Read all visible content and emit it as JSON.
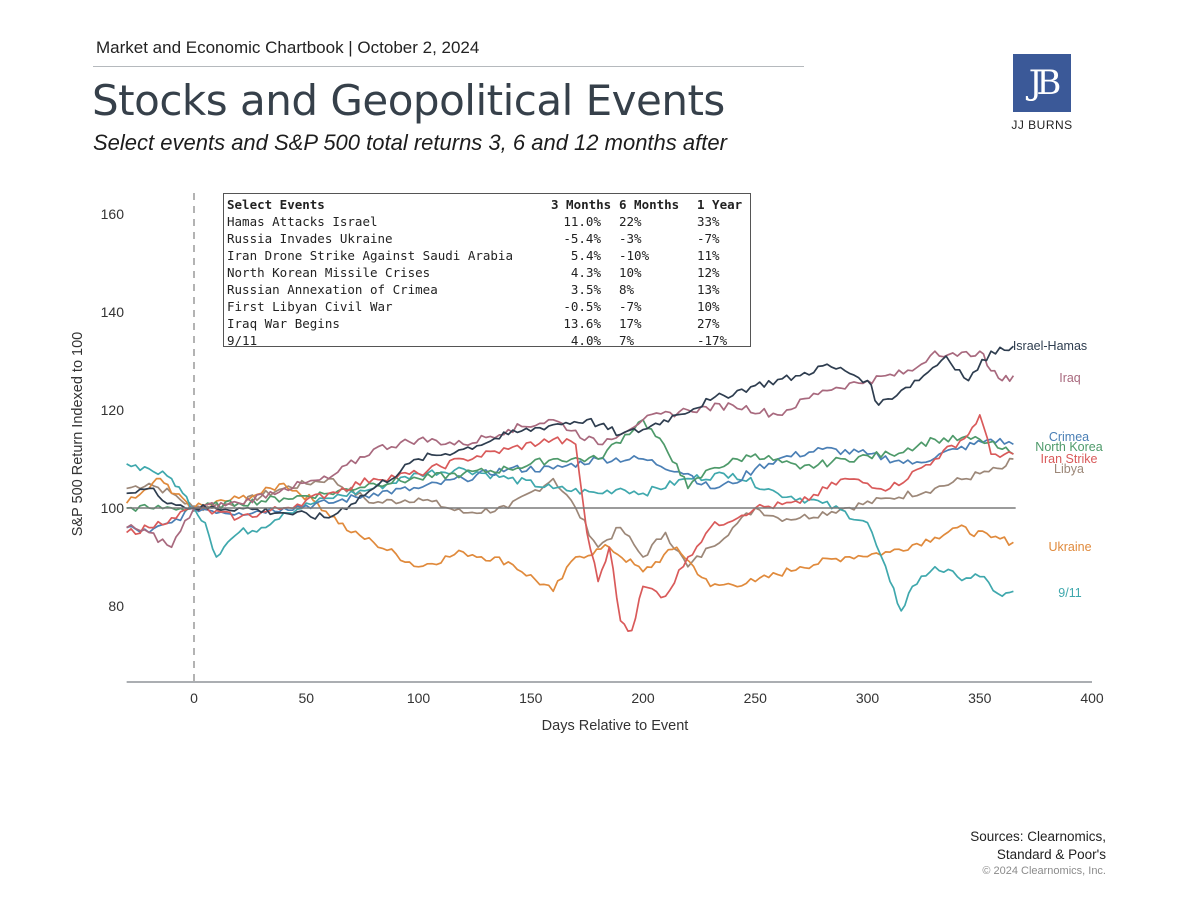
{
  "header": {
    "top_line": "Market and Economic Chartbook | October 2, 2024",
    "title": "Stocks and Geopolitical Events",
    "subtitle": "Select events and S&P 500 total returns 3, 6 and 12 months after"
  },
  "logo": {
    "mark": "JB",
    "name": "JJ BURNS",
    "color": "#3b5998"
  },
  "table": {
    "headers": [
      "Select Events",
      "3 Months",
      "6 Months",
      "1 Year"
    ],
    "rows": [
      [
        "Hamas Attacks Israel",
        "11.0%",
        "22%",
        "33%"
      ],
      [
        "Russia Invades Ukraine",
        "-5.4%",
        "-3%",
        "-7%"
      ],
      [
        "Iran Drone Strike Against Saudi Arabia",
        "5.4%",
        "-10%",
        "11%"
      ],
      [
        "North Korean Missile Crises",
        "4.3%",
        "10%",
        "12%"
      ],
      [
        "Russian Annexation of Crimea",
        "3.5%",
        "8%",
        "13%"
      ],
      [
        "First Libyan Civil War",
        "-0.5%",
        "-7%",
        "10%"
      ],
      [
        "Iraq War Begins",
        "13.6%",
        "17%",
        "27%"
      ],
      [
        "9/11",
        "4.0%",
        "7%",
        "-17%"
      ]
    ]
  },
  "footer": {
    "sources_line1": "Sources: Clearnomics,",
    "sources_line2": "Standard & Poor's",
    "copyright": "© 2024 Clearnomics, Inc."
  },
  "chart_data": {
    "type": "line",
    "title": "Stocks and Geopolitical Events",
    "xlabel": "Days Relative to Event",
    "ylabel": "S&P 500 Return Indexed to 100",
    "xlim": [
      -30,
      400
    ],
    "ylim": [
      64.5,
      166
    ],
    "xticks": [
      0,
      50,
      100,
      150,
      200,
      250,
      300,
      350,
      400
    ],
    "yticks": [
      80,
      100,
      120,
      140,
      160
    ],
    "reference_lines": {
      "horizontal": 100,
      "vertical_dashed": 0
    },
    "grid": false,
    "legend": "direct labels at right end of lines",
    "series": [
      {
        "name": "Israel-Hamas",
        "color": "#2e3d4f",
        "x": [
          -30,
          -20,
          -10,
          0,
          20,
          40,
          60,
          80,
          100,
          120,
          140,
          160,
          175,
          190,
          200,
          215,
          230,
          250,
          270,
          280,
          290,
          300,
          305,
          315,
          325,
          335,
          345,
          355,
          365
        ],
        "y": [
          103,
          104,
          101,
          100,
          100,
          99,
          98,
          104,
          110,
          112,
          115,
          117,
          118,
          115,
          116,
          119,
          122,
          125,
          127,
          129,
          128,
          126,
          121,
          124,
          127,
          131,
          126,
          132,
          133
        ]
      },
      {
        "name": "Iraq",
        "color": "#a8697e",
        "x": [
          -30,
          -20,
          -10,
          0,
          20,
          40,
          60,
          80,
          100,
          120,
          140,
          160,
          180,
          200,
          220,
          240,
          260,
          280,
          300,
          320,
          330,
          340,
          350,
          355,
          360,
          365
        ],
        "y": [
          96,
          95,
          92,
          100,
          101,
          104,
          106,
          112,
          114,
          113,
          116,
          118,
          113,
          118,
          120,
          121,
          119,
          124,
          126,
          128,
          132,
          131,
          132,
          128,
          126,
          127
        ]
      },
      {
        "name": "Crimea",
        "color": "#4a7fb5",
        "x": [
          -30,
          -20,
          -10,
          0,
          20,
          40,
          60,
          80,
          100,
          120,
          140,
          160,
          180,
          200,
          220,
          230,
          240,
          250,
          260,
          280,
          300,
          320,
          340,
          355,
          365
        ],
        "y": [
          96,
          95,
          97,
          100,
          99,
          100,
          101,
          103,
          104,
          106,
          108,
          108,
          110,
          110,
          107,
          104,
          105,
          108,
          110,
          112,
          111,
          109,
          112,
          114,
          113
        ]
      },
      {
        "name": "North Korea",
        "color": "#4e9a6a",
        "x": [
          -30,
          -20,
          -10,
          0,
          20,
          40,
          60,
          80,
          100,
          120,
          140,
          160,
          180,
          200,
          215,
          220,
          230,
          250,
          270,
          290,
          310,
          330,
          350,
          360,
          365
        ],
        "y": [
          100,
          100,
          100,
          100,
          101,
          102,
          103,
          105,
          106,
          107,
          108,
          110,
          110,
          118,
          109,
          104,
          108,
          111,
          108,
          110,
          111,
          114,
          114,
          112,
          111
        ]
      },
      {
        "name": "Iran Strike",
        "color": "#d95a5a",
        "x": [
          -30,
          -20,
          -10,
          0,
          20,
          40,
          60,
          80,
          100,
          120,
          140,
          160,
          170,
          175,
          180,
          185,
          190,
          195,
          200,
          210,
          220,
          230,
          250,
          270,
          290,
          310,
          330,
          345,
          350,
          355,
          365
        ],
        "y": [
          95,
          96,
          98,
          100,
          98,
          100,
          103,
          106,
          107,
          110,
          112,
          114,
          113,
          95,
          85,
          92,
          77,
          75,
          84,
          82,
          90,
          96,
          100,
          101,
          106,
          104,
          110,
          115,
          119,
          111,
          111
        ]
      },
      {
        "name": "Libya",
        "color": "#9c8778",
        "x": [
          -30,
          -20,
          -10,
          0,
          20,
          40,
          60,
          80,
          100,
          120,
          140,
          160,
          170,
          180,
          190,
          200,
          210,
          220,
          230,
          240,
          250,
          260,
          270,
          290,
          310,
          330,
          350,
          360,
          365
        ],
        "y": [
          104,
          105,
          103,
          100,
          101,
          104,
          106,
          101,
          102,
          99,
          100,
          106,
          100,
          92,
          96,
          90,
          95,
          88,
          92,
          96,
          100,
          98,
          98,
          100,
          102,
          104,
          107,
          108,
          110
        ]
      },
      {
        "name": "Ukraine",
        "color": "#e08a3c",
        "x": [
          -30,
          -20,
          -15,
          -10,
          -5,
          0,
          20,
          30,
          40,
          55,
          70,
          80,
          100,
          120,
          140,
          160,
          170,
          185,
          200,
          215,
          230,
          250,
          270,
          290,
          310,
          330,
          340,
          355,
          365
        ],
        "y": [
          101,
          104,
          106,
          103,
          102,
          100,
          102,
          103,
          105,
          101,
          95,
          93,
          88,
          91,
          89,
          83,
          90,
          92,
          87,
          92,
          84,
          85,
          88,
          90,
          91,
          94,
          96,
          94,
          93
        ]
      },
      {
        "name": "9/11",
        "color": "#3fa8ad",
        "x": [
          -30,
          -20,
          -10,
          -5,
          0,
          5,
          10,
          15,
          20,
          30,
          40,
          60,
          80,
          100,
          120,
          140,
          160,
          180,
          190,
          200,
          220,
          240,
          260,
          280,
          300,
          310,
          315,
          320,
          330,
          340,
          350,
          360,
          365
        ],
        "y": [
          109,
          108,
          106,
          103,
          100,
          97,
          90,
          93,
          95,
          96,
          99,
          102,
          104,
          107,
          108,
          106,
          104,
          103,
          104,
          103,
          106,
          107,
          103,
          101,
          97,
          85,
          79,
          84,
          88,
          86,
          86,
          82,
          83
        ]
      }
    ],
    "labels": [
      {
        "text": "Israel-Hamas",
        "series": "Israel-Hamas"
      },
      {
        "text": "Iraq",
        "series": "Iraq"
      },
      {
        "text": "Crimea",
        "series": "Crimea"
      },
      {
        "text": "North Korea",
        "series": "North Korea"
      },
      {
        "text": "Iran Strike",
        "series": "Iran Strike"
      },
      {
        "text": "Libya",
        "series": "Libya"
      },
      {
        "text": "Ukraine",
        "series": "Ukraine"
      },
      {
        "text": "9/11",
        "series": "9/11"
      }
    ]
  }
}
